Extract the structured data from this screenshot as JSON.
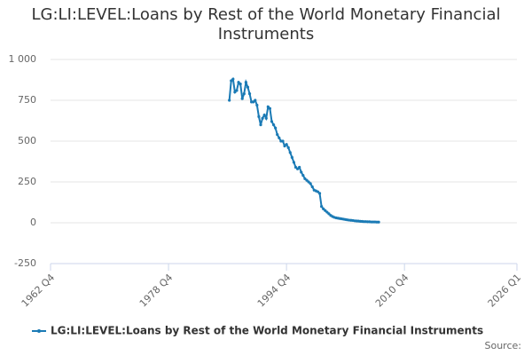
{
  "chart_data": {
    "type": "line",
    "title": "LG:LI:LEVEL:Loans by Rest of the World Monetary Financial Instruments",
    "source": "Source:",
    "x": [
      "1987 Q1",
      "1987 Q2",
      "1987 Q3",
      "1987 Q4",
      "1988 Q1",
      "1988 Q2",
      "1988 Q3",
      "1988 Q4",
      "1989 Q1",
      "1989 Q2",
      "1989 Q3",
      "1989 Q4",
      "1990 Q1",
      "1990 Q2",
      "1990 Q3",
      "1990 Q4",
      "1991 Q1",
      "1991 Q2",
      "1991 Q3",
      "1991 Q4",
      "1992 Q1",
      "1992 Q2",
      "1992 Q3",
      "1992 Q4",
      "1993 Q1",
      "1993 Q2",
      "1993 Q3",
      "1993 Q4",
      "1994 Q1",
      "1994 Q2",
      "1994 Q3",
      "1994 Q4",
      "1995 Q1",
      "1995 Q2",
      "1995 Q3",
      "1995 Q4",
      "1996 Q1",
      "1996 Q2",
      "1996 Q3",
      "1996 Q4",
      "1997 Q1",
      "1997 Q2",
      "1997 Q3",
      "1997 Q4",
      "1998 Q1",
      "1998 Q2",
      "1998 Q3",
      "1998 Q4",
      "1999 Q1",
      "1999 Q2",
      "1999 Q3",
      "1999 Q4",
      "2000 Q1",
      "2000 Q2",
      "2000 Q3",
      "2000 Q4",
      "2001 Q1",
      "2001 Q2",
      "2001 Q3",
      "2001 Q4",
      "2002 Q1",
      "2002 Q2",
      "2002 Q3",
      "2002 Q4",
      "2003 Q1",
      "2003 Q2",
      "2003 Q3",
      "2003 Q4",
      "2004 Q1",
      "2004 Q2",
      "2004 Q3",
      "2004 Q4",
      "2005 Q1",
      "2005 Q2",
      "2005 Q3",
      "2005 Q4",
      "2006 Q1",
      "2006 Q2",
      "2006 Q3",
      "2006 Q4",
      "2007 Q1",
      "2007 Q2"
    ],
    "series": [
      {
        "name": "LG:LI:LEVEL:Loans by Rest of the World Monetary Financial Instruments",
        "color": "#1a7ab5",
        "values": [
          750,
          870,
          880,
          800,
          810,
          860,
          850,
          760,
          790,
          860,
          830,
          790,
          740,
          740,
          750,
          720,
          650,
          600,
          640,
          660,
          640,
          710,
          700,
          620,
          600,
          580,
          540,
          520,
          500,
          500,
          470,
          480,
          460,
          430,
          400,
          370,
          340,
          330,
          340,
          310,
          290,
          270,
          260,
          250,
          240,
          220,
          200,
          195,
          190,
          180,
          100,
          85,
          75,
          65,
          55,
          45,
          38,
          33,
          30,
          28,
          26,
          24,
          22,
          20,
          18,
          16,
          15,
          14,
          12,
          11,
          10,
          9,
          8,
          7,
          7,
          6,
          6,
          5,
          5,
          5,
          4,
          4
        ]
      }
    ],
    "xlim": [
      "1962 Q4",
      "2026 Q1"
    ],
    "xticks": [
      "1962 Q4",
      "1978 Q4",
      "1994 Q4",
      "2010 Q4",
      "2026 Q1"
    ],
    "ylim": [
      -250,
      1000
    ],
    "yticks": [
      -250,
      0,
      250,
      500,
      750,
      {
        "value": 1000,
        "label": "1 000"
      }
    ],
    "grid": true
  }
}
